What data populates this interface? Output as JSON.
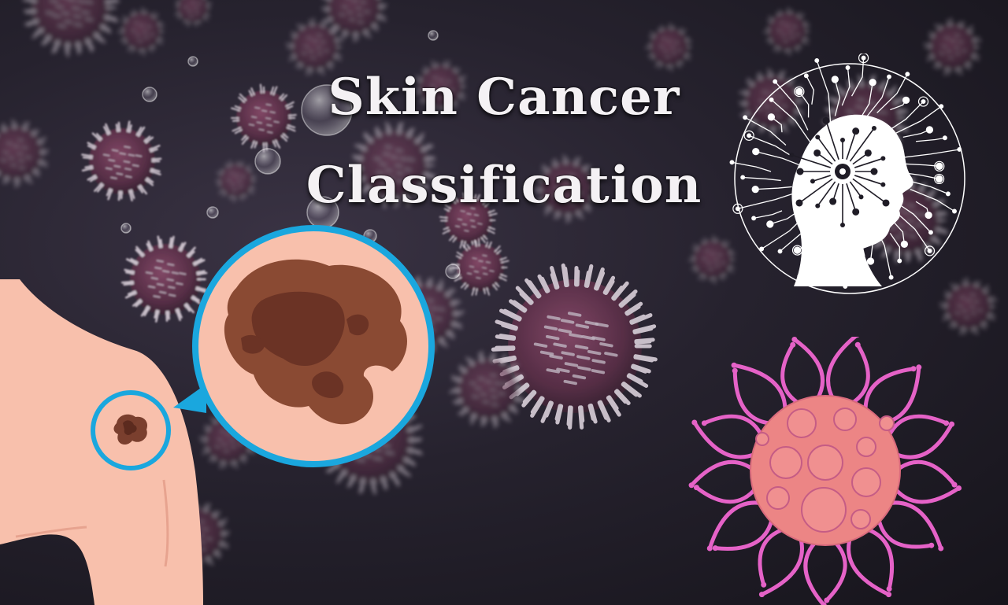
{
  "title": {
    "line1": "Skin Cancer",
    "line2": "Classification"
  },
  "colors": {
    "background": "#1f1c26",
    "virus": "#6b3a55",
    "skin": "#f8c0ac",
    "mole": "#7a3f2e",
    "magnifier_ring": "#1aa7de",
    "cancer_cell": "#ec8585",
    "cancer_tentacle": "#e562c7"
  },
  "icons": [
    "virus-icon",
    "skin-shoulder-icon",
    "magnifier-icon",
    "ai-head-icon",
    "cancer-cell-icon"
  ]
}
